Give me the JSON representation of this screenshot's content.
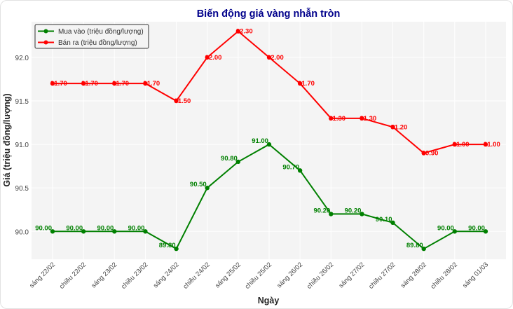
{
  "chart_data": {
    "type": "line",
    "title": "Biến động giá vàng nhẫn tròn",
    "xlabel": "Ngày",
    "ylabel": "Giá (triệu đồng/lượng)",
    "categories": [
      "sáng 22/02",
      "chiều 22/02",
      "sáng 23/02",
      "chiều 23/02",
      "sáng 24/02",
      "chiều 24/02",
      "sáng 25/02",
      "chiều 25/02",
      "sáng 26/02",
      "chiều 26/02",
      "sáng 27/02",
      "chiều 27/02",
      "sáng 28/02",
      "chiều 28/02",
      "sáng 01/03"
    ],
    "yticks": [
      "90.0",
      "90.5",
      "91.0",
      "91.5",
      "92.0"
    ],
    "ylim": [
      89.68,
      92.41
    ],
    "grid": true,
    "legend_position": "top-left",
    "series": [
      {
        "name": "Mua vào (triệu đồng/lượng)",
        "color": "#008000",
        "values": [
          90.0,
          90.0,
          90.0,
          90.0,
          89.8,
          90.5,
          90.8,
          91.0,
          90.7,
          90.2,
          90.2,
          90.1,
          89.8,
          90.0,
          90.0
        ]
      },
      {
        "name": "Bán ra (triệu đồng/lượng)",
        "color": "#ff0000",
        "values": [
          91.7,
          91.7,
          91.7,
          91.7,
          91.5,
          92.0,
          92.3,
          92.0,
          91.7,
          91.3,
          91.3,
          91.2,
          90.9,
          91.0,
          91.0
        ]
      }
    ]
  }
}
